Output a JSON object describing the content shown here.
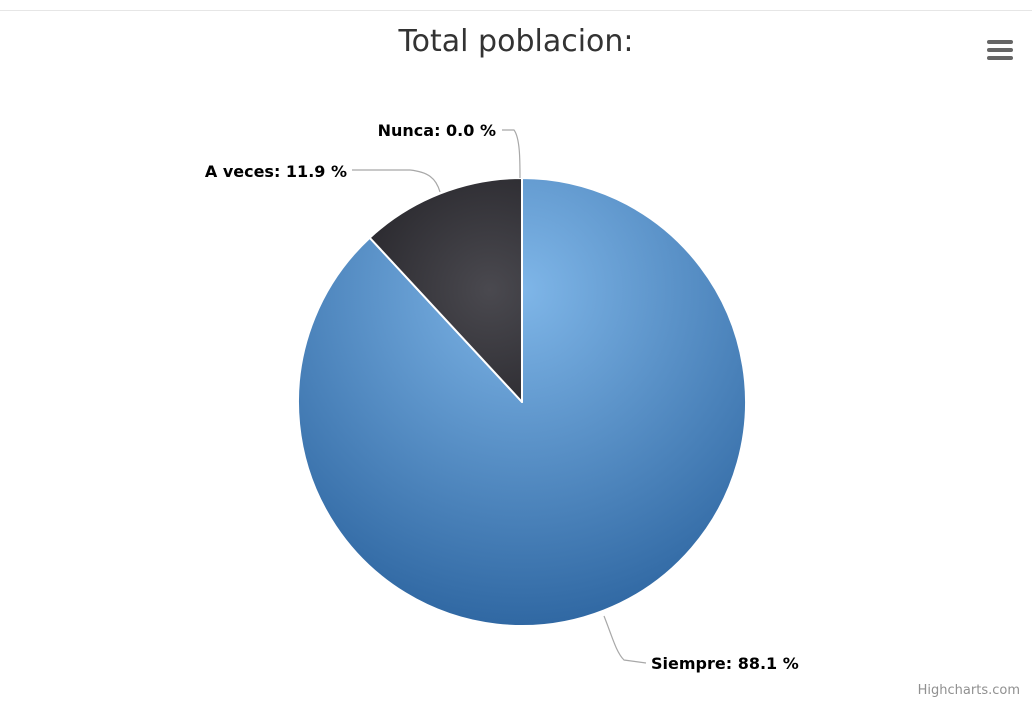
{
  "chart_data": {
    "type": "pie",
    "title": "Total poblacion:",
    "slices": [
      {
        "name": "Siempre",
        "value": 88.1,
        "label": "Siempre: 88.1 %",
        "color": "#4a86c1"
      },
      {
        "name": "A veces",
        "value": 11.9,
        "label": "A veces: 11.9 %",
        "color": "#2c2b30"
      },
      {
        "name": "Nunca",
        "value": 0.0,
        "label": "Nunca: 0.0 %",
        "color": "#8bbc21"
      }
    ],
    "legend": false
  },
  "credits": "Highcharts.com",
  "menu_icon": "hamburger-menu-icon"
}
